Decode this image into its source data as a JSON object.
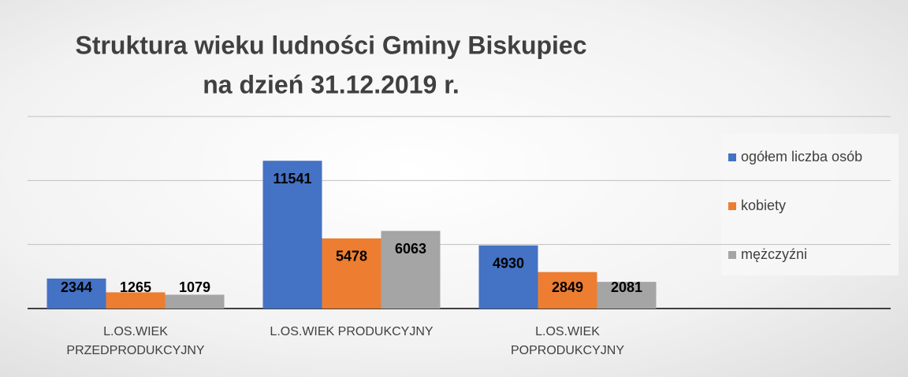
{
  "chart_data": {
    "type": "bar",
    "title": "Struktura wieku ludności Gminy Biskupiec",
    "subtitle": "na dzień 31.12.2019 r.",
    "categories": [
      "L.OS.WIEK\nPRZEDPRODUKCYJNY",
      "L.OS.WIEK PRODUKCYJNY",
      "L.OS.WIEK\nPOPRODUKCYJNY"
    ],
    "series": [
      {
        "name": "ogółem liczba osób",
        "color": "#4472c4",
        "values": [
          2344,
          11541,
          4930
        ]
      },
      {
        "name": "kobiety",
        "color": "#ed7d31",
        "values": [
          1265,
          5478,
          2849
        ]
      },
      {
        "name": "mężczyźni",
        "color": "#a5a5a5",
        "values": [
          1079,
          6063,
          2081
        ]
      }
    ],
    "ylim": [
      0,
      15000
    ],
    "yticks": [
      0,
      5000,
      10000,
      15000
    ],
    "grid": true,
    "legend": "right"
  }
}
